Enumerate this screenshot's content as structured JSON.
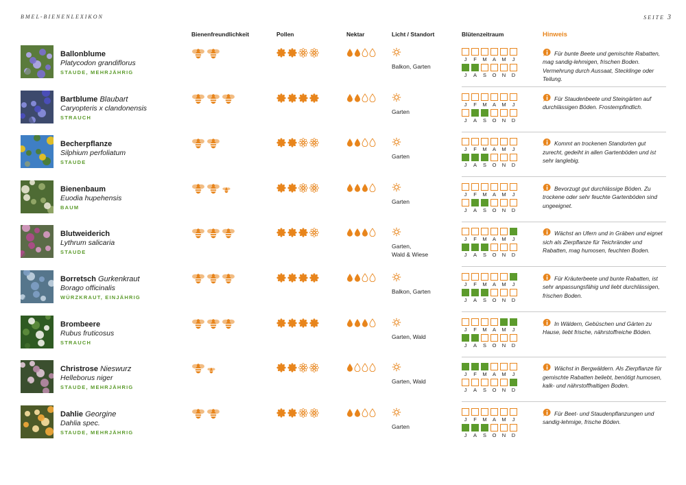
{
  "header": {
    "left": "BMEL-BIENENLEXIKON",
    "right_prefix": "SEITE ",
    "right_number": "3"
  },
  "columns": {
    "bees": "Bienenfreundlichkeit",
    "pollen": "Pollen",
    "nectar": "Nektar",
    "light": "Licht / Standort",
    "bloom": "Blütenzeitraum",
    "hint": "Hinweis"
  },
  "month_labels_h1": [
    "J",
    "F",
    "M",
    "A",
    "M",
    "J"
  ],
  "month_labels_h2": [
    "J",
    "A",
    "S",
    "O",
    "N",
    "D"
  ],
  "colors": {
    "orange": "#e8851c",
    "green": "#5c9b2c",
    "rule": "#c9c9c9"
  },
  "icons": {
    "bee": "bee-icon",
    "pollen": "pollen-flower-icon",
    "nectar": "nectar-drop-icon",
    "light": "sun-icon",
    "hint": "info-bubble-icon"
  },
  "rating_scale": {
    "bees_max": 3,
    "pollen_max": 4,
    "nectar_max": 4
  },
  "plants": [
    {
      "common": "Ballonblume",
      "alias": "",
      "latin": "Platycodon grandiflorus",
      "type": "STAUDE, MEHRJÄHRIG",
      "bees": 2,
      "small_bee": false,
      "pollen": 2,
      "nectar": 2,
      "location": [
        "Balkon, Garten"
      ],
      "bloom": [
        0,
        0,
        0,
        0,
        0,
        0,
        1,
        1,
        0,
        0,
        0,
        0
      ],
      "hint": "Für bunte Beete und gemischte Rabatten, mag sandig-lehmigen, frischen Boden. Vermehrung durch Aussaat, Stecklinge oder Teilung.",
      "photo_palette": [
        "#5a7b3b",
        "#7b6fd1",
        "#b3a9f0"
      ]
    },
    {
      "common": "Bartblume",
      "alias": "Blaubart",
      "latin": "Caryopteris x clandonensis",
      "type": "STRAUCH",
      "bees": 3,
      "small_bee": false,
      "pollen": 4,
      "nectar": 2,
      "location": [
        "Garten"
      ],
      "bloom": [
        0,
        0,
        0,
        0,
        0,
        0,
        0,
        1,
        1,
        0,
        0,
        0
      ],
      "hint": "Für Staudenbeete und Steingärten auf durchlässigen Böden. Frostempfindlich.",
      "photo_palette": [
        "#3d4a6d",
        "#4b4fc0",
        "#8a8fe0"
      ]
    },
    {
      "common": "Becherpflanze",
      "alias": "",
      "latin": "Silphium perfoliatum",
      "type": "STAUDE",
      "bees": 2,
      "small_bee": false,
      "pollen": 2,
      "nectar": 2,
      "location": [
        "Garten"
      ],
      "bloom": [
        0,
        0,
        0,
        0,
        0,
        0,
        1,
        1,
        1,
        0,
        0,
        0
      ],
      "hint": "Kommt an trockenen Standorten gut zurecht, gedeiht in allen Gartenböden und ist sehr langlebig.",
      "photo_palette": [
        "#3f7fc4",
        "#f0c419",
        "#4c7d2c"
      ]
    },
    {
      "common": "Bienenbaum",
      "alias": "",
      "latin": "Euodia hupehensis",
      "type": "BAUM",
      "bees": 2,
      "small_bee": true,
      "pollen": 2,
      "nectar": 3,
      "location": [
        "Garten"
      ],
      "bloom": [
        0,
        0,
        0,
        0,
        0,
        0,
        0,
        1,
        1,
        0,
        0,
        0
      ],
      "hint": "Bevorzugt gut durchlässige Böden. Zu trockene oder sehr feuchte Gartenböden sind ungeeignet.",
      "photo_palette": [
        "#4e6b34",
        "#e8e6d2",
        "#98ac6c"
      ]
    },
    {
      "common": "Blutweiderich",
      "alias": "",
      "latin": "Lythrum salicaria",
      "type": "STAUDE",
      "bees": 3,
      "small_bee": false,
      "pollen": 3,
      "nectar": 3,
      "location": [
        "Garten,",
        "Wald & Wiese"
      ],
      "bloom": [
        0,
        0,
        0,
        0,
        0,
        1,
        1,
        1,
        1,
        0,
        0,
        0
      ],
      "hint": "Wächst an Ufern und in Gräben und eignet sich als Zierpflanze für Teichränder und Rabatten, mag humosen, feuchten Boden.",
      "photo_palette": [
        "#5b6b48",
        "#b04a8c",
        "#d89ac4"
      ]
    },
    {
      "common": "Borretsch",
      "alias": "Gurkenkraut",
      "latin": "Borago officinalis",
      "type": "WÜRZKRAUT, EINJÄHRIG",
      "bees": 3,
      "small_bee": false,
      "pollen": 4,
      "nectar": 2,
      "location": [
        "Balkon, Garten"
      ],
      "bloom": [
        0,
        0,
        0,
        0,
        0,
        1,
        1,
        1,
        1,
        0,
        0,
        0
      ],
      "hint": "Für Kräuterbeete und bunte Rabatten, ist sehr anpassungsfähig und liebt durchlässigen, frischen Boden.",
      "photo_palette": [
        "#56768c",
        "#7fa0c4",
        "#c2d3e0"
      ]
    },
    {
      "common": "Brombeere",
      "alias": "",
      "latin": "Rubus fruticosus",
      "type": "STRAUCH",
      "bees": 3,
      "small_bee": false,
      "pollen": 4,
      "nectar": 3,
      "location": [
        "Garten, Wald"
      ],
      "bloom": [
        0,
        0,
        0,
        0,
        1,
        1,
        1,
        1,
        0,
        0,
        0,
        0
      ],
      "hint": "In Wäldern, Gebüschen und Gärten zu Hause, liebt frische, nährstoffreiche Böden.",
      "photo_palette": [
        "#2e5a22",
        "#f2f2ea",
        "#5e8d3d"
      ]
    },
    {
      "common": "Christrose",
      "alias": "Nieswurz",
      "latin": "Helleborus niger",
      "type": "STAUDE, MEHRJÄHRIG",
      "bees": 1,
      "small_bee": true,
      "pollen": 2,
      "nectar": 1,
      "location": [
        "Garten, Wald"
      ],
      "bloom": [
        1,
        1,
        1,
        0,
        0,
        0,
        0,
        0,
        0,
        0,
        0,
        1
      ],
      "hint": "Wächst in Bergwäldern. Als Zierpflanze für gemischte Rabatten beliebt, benötigt humosen, kalk- und nährstoffhaltigen Boden.",
      "photo_palette": [
        "#3b4f2f",
        "#b98aa8",
        "#e3c8d8"
      ]
    },
    {
      "common": "Dahlie",
      "alias": "Georgine",
      "latin": "Dahlia spec.",
      "type": "STAUDE, MEHRJÄHRIG",
      "bees": 2,
      "small_bee": false,
      "pollen": 2,
      "nectar": 2,
      "location": [
        "Garten"
      ],
      "bloom": [
        0,
        0,
        0,
        0,
        0,
        0,
        1,
        1,
        1,
        0,
        0,
        0
      ],
      "hint": "Für Beet- und Staudenpflanzungen und sandig-lehmige, frische Böden.",
      "photo_palette": [
        "#4d5a28",
        "#f4a83a",
        "#fbe0a0"
      ]
    }
  ]
}
